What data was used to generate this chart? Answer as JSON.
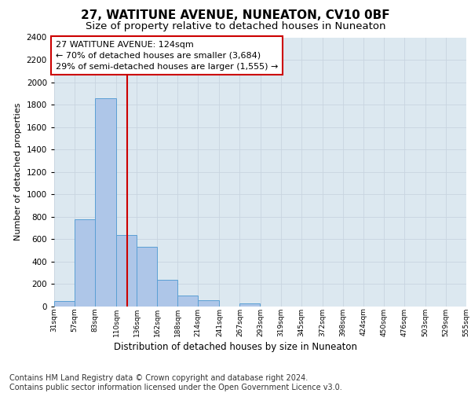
{
  "title": "27, WATITUNE AVENUE, NUNEATON, CV10 0BF",
  "subtitle": "Size of property relative to detached houses in Nuneaton",
  "xlabel": "Distribution of detached houses by size in Nuneaton",
  "ylabel": "Number of detached properties",
  "bin_edges": [
    31,
    57,
    83,
    110,
    136,
    162,
    188,
    214,
    241,
    267,
    293,
    319,
    345,
    372,
    398,
    424,
    450,
    476,
    503,
    529,
    555
  ],
  "bar_heights": [
    50,
    780,
    1860,
    640,
    530,
    235,
    100,
    55,
    0,
    25,
    0,
    0,
    0,
    0,
    0,
    0,
    0,
    0,
    0,
    0
  ],
  "bar_color": "#aec6e8",
  "bar_edge_color": "#5a9fd4",
  "property_line_x": 124,
  "property_line_color": "#cc0000",
  "annotation_line1": "27 WATITUNE AVENUE: 124sqm",
  "annotation_line2": "← 70% of detached houses are smaller (3,684)",
  "annotation_line3": "29% of semi-detached houses are larger (1,555) →",
  "annotation_box_color": "#cc0000",
  "annotation_bg_color": "#ffffff",
  "ylim": [
    0,
    2400
  ],
  "yticks": [
    0,
    200,
    400,
    600,
    800,
    1000,
    1200,
    1400,
    1600,
    1800,
    2000,
    2200,
    2400
  ],
  "grid_color": "#c8d4e0",
  "bg_color": "#dce8f0",
  "footer_line1": "Contains HM Land Registry data © Crown copyright and database right 2024.",
  "footer_line2": "Contains public sector information licensed under the Open Government Licence v3.0.",
  "title_fontsize": 11,
  "subtitle_fontsize": 9.5,
  "annotation_fontsize": 8,
  "footer_fontsize": 7
}
